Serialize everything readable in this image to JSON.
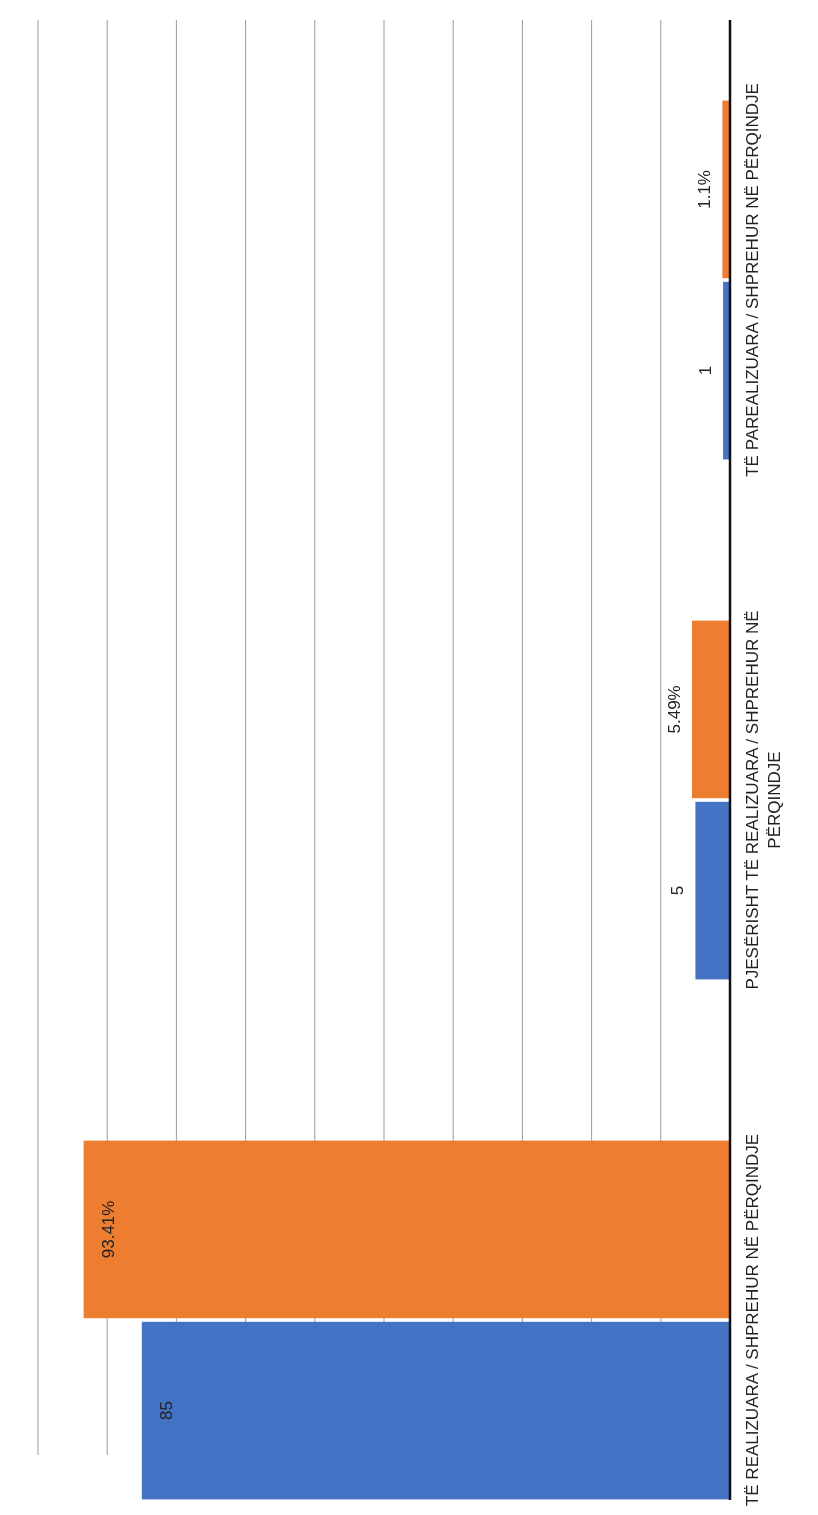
{
  "chart_data": {
    "type": "bar",
    "orientation": "horizontal",
    "categories": [
      "TË PAREALIZUARA / SHPREHUR NË PËRQINDJE",
      "PJESËRISHT TË REALIZUARA / SHPREHUR NË PËRQINDJE",
      "TË REALIZUARA / SHPREHUR NË PËRQINDJE"
    ],
    "series": [
      {
        "color": "#4472c4",
        "values": [
          1,
          5,
          85
        ],
        "value_labels": [
          "1",
          "5",
          "85"
        ]
      },
      {
        "color": "#ed7d31",
        "values": [
          1.1,
          5.49,
          93.41
        ],
        "value_labels": [
          "1.1%",
          "5.49%",
          "93.41%"
        ]
      }
    ],
    "xlim": [
      100,
      0
    ],
    "xticks": [
      {
        "value": 0,
        "label": null
      },
      {
        "value": 10,
        "label": null
      },
      {
        "value": 20,
        "label": null
      },
      {
        "value": 30,
        "label": null
      },
      {
        "value": 40,
        "label": null
      },
      {
        "value": 50,
        "label": null
      },
      {
        "value": 60,
        "label": null
      },
      {
        "value": 70,
        "label": null
      },
      {
        "value": 80,
        "label": null
      },
      {
        "value": 90,
        "label": null
      },
      {
        "value": 100,
        "label": null
      }
    ],
    "tick_labels": "y",
    "grid": "x"
  }
}
